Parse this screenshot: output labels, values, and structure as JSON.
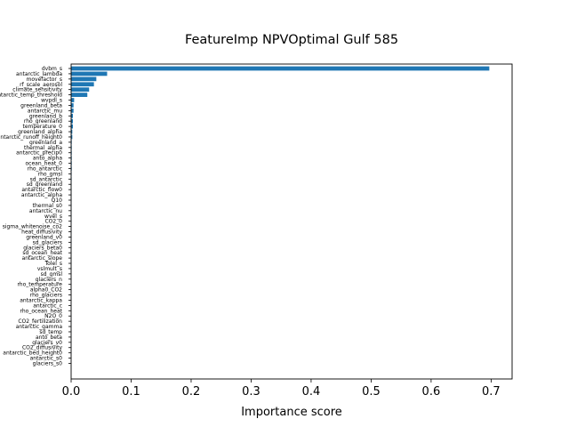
{
  "chart_data": {
    "type": "bar",
    "orientation": "horizontal",
    "title": "FeatureImp NPVOptimal Gulf 585",
    "xlabel": "Importance score",
    "ylabel": "",
    "xlim": [
      0,
      0.735
    ],
    "xticks": [
      0.0,
      0.1,
      0.2,
      0.3,
      0.4,
      0.5,
      0.6,
      0.7
    ],
    "xtick_labels": [
      "0.0",
      "0.1",
      "0.2",
      "0.3",
      "0.4",
      "0.5",
      "0.6",
      "0.7"
    ],
    "grid": false,
    "bar_color": "#1f77b4",
    "categories": [
      "dvbm_s",
      "antarctic_lambda",
      "movefactor_s",
      "rf_scale_aerosol",
      "climate_sensitivity",
      "antarctic_temp_threshold",
      "wvpdl_s",
      "greenland_beta",
      "antarctic_mu",
      "greenland_b",
      "rho_greenland",
      "temperature_0",
      "greenland_alpha",
      "antarctic_runoff_height0",
      "greenland_a",
      "thermal_alpha",
      "antarctic_precip0",
      "anto_alpha",
      "ocean_heat_0",
      "rho_antarctic",
      "rho_gmsl",
      "sd_antarctic",
      "sd_greenland",
      "antarctic_flow0",
      "antarctic_alpha",
      "Q10",
      "thermal_s0",
      "antarctic_nu",
      "wvel_s",
      "CO2_0",
      "sigma_whitenoise_co2",
      "heat_diffusivity",
      "greenland_v0",
      "sd_glaciers",
      "glaciers_beta0",
      "sd_ocean_heat",
      "antarctic_slope",
      "Tolel_s",
      "vslmult_s",
      "sd_gmsl",
      "glaciers_n",
      "rho_temperature",
      "alpha0_CO2",
      "rho_glaciers",
      "antarctic_kappa",
      "antarctic_c",
      "rho_ocean_heat",
      "N2O_0",
      "CO2_fertilization",
      "antarctic_gamma",
      "sd_temp",
      "anto_beta",
      "glaciers_v0",
      "CO2_diffusivity",
      "antarctic_bed_height0",
      "antarctic_s0",
      "glaciers_s0"
    ],
    "values": [
      0.697,
      0.06,
      0.042,
      0.038,
      0.03,
      0.027,
      0.005,
      0.004,
      0.004,
      0.003,
      0.003,
      0.003,
      0.002,
      0.002,
      0.001,
      0.001,
      0.001,
      0.001,
      0.001,
      0.001,
      0.0008,
      0.0008,
      0.0007,
      0.0007,
      0.0006,
      0.0006,
      0.0006,
      0.0005,
      0.0005,
      0.0005,
      0.0004,
      0.0004,
      0.0004,
      0.0004,
      0.0003,
      0.0003,
      0.0003,
      0.0003,
      0.0003,
      0.0002,
      0.0002,
      0.0002,
      0.0002,
      0.0002,
      0.0002,
      0.0001,
      0.0001,
      0.0001,
      0.0001,
      0.0001,
      0.0001,
      0.0001,
      0.0001,
      0.0001,
      0.0001,
      5e-05,
      5e-05
    ]
  }
}
